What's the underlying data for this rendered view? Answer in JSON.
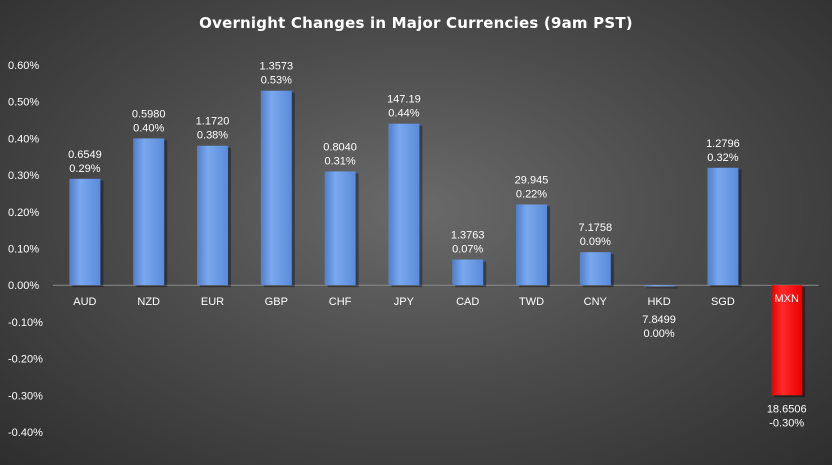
{
  "chart_data": {
    "type": "bar",
    "title": "Overnight Changes in Major Currencies (9am PST)",
    "categories": [
      "AUD",
      "NZD",
      "EUR",
      "GBP",
      "CHF",
      "JPY",
      "CAD",
      "TWD",
      "CNY",
      "HKD",
      "SGD",
      "MXN"
    ],
    "values": [
      0.29,
      0.4,
      0.38,
      0.53,
      0.31,
      0.44,
      0.07,
      0.22,
      0.09,
      0.0,
      0.32,
      -0.3
    ],
    "rates": [
      "0.6549",
      "0.5980",
      "1.1720",
      "1.3573",
      "0.8040",
      "147.19",
      "1.3763",
      "29.945",
      "7.1758",
      "7.8499",
      "1.2796",
      "18.6506"
    ],
    "percent_labels": [
      "0.29%",
      "0.40%",
      "0.38%",
      "0.53%",
      "0.31%",
      "0.44%",
      "0.07%",
      "0.22%",
      "0.09%",
      "0.00%",
      "0.32%",
      "-0.30%"
    ],
    "yticks": [
      0.6,
      0.5,
      0.4,
      0.3,
      0.2,
      0.1,
      0.0,
      -0.1,
      -0.2,
      -0.3,
      -0.4
    ],
    "ytick_labels": [
      "0.60%",
      "0.50%",
      "0.40%",
      "0.30%",
      "0.20%",
      "0.10%",
      "0.00%",
      "-0.10%",
      "-0.20%",
      "-0.30%",
      "-0.40%"
    ],
    "ylim": [
      -0.4,
      0.6
    ],
    "xlabel": "",
    "ylabel": "",
    "grid": false,
    "legend": "none",
    "colors": {
      "positive_bar": "#6b9be6",
      "negative_bar": "#ff0000",
      "background": "#4d4d4d",
      "text": "#ffffff"
    }
  }
}
